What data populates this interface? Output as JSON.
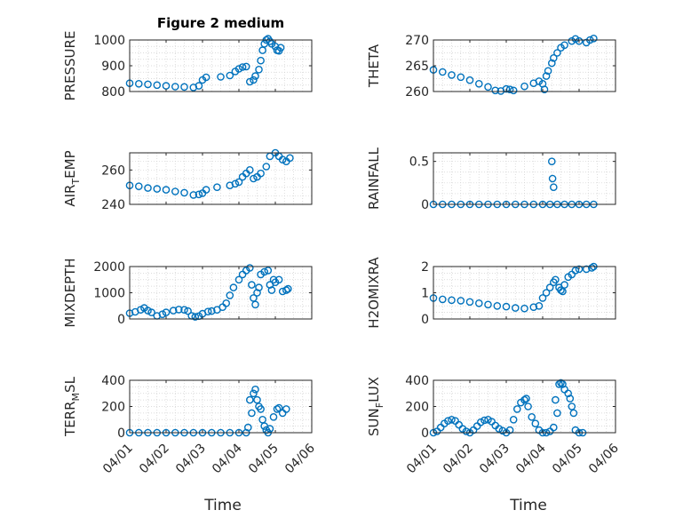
{
  "chart_data": [
    {
      "type": "scatter",
      "title": "Figure 2 medium",
      "ylabel": "PRESSURE",
      "ylim": [
        800,
        1000
      ],
      "yticks": [
        800,
        900,
        1000
      ],
      "xlim": [
        0,
        5
      ],
      "xticks": [
        "04/01",
        "04/02",
        "04/03",
        "04/04",
        "04/05",
        "04/06"
      ],
      "grid": true,
      "marker_color": "#0072BD",
      "points": [
        [
          0,
          832
        ],
        [
          0.25,
          830
        ],
        [
          0.5,
          828
        ],
        [
          0.75,
          825
        ],
        [
          1,
          822
        ],
        [
          1.25,
          819
        ],
        [
          1.5,
          818
        ],
        [
          1.75,
          816
        ],
        [
          1.9,
          822
        ],
        [
          2,
          845
        ],
        [
          2.1,
          855
        ],
        [
          2.5,
          857
        ],
        [
          2.75,
          862
        ],
        [
          2.9,
          878
        ],
        [
          3,
          888
        ],
        [
          3.1,
          895
        ],
        [
          3.2,
          897
        ],
        [
          3.3,
          838
        ],
        [
          3.4,
          845
        ],
        [
          3.45,
          860
        ],
        [
          3.55,
          885
        ],
        [
          3.6,
          920
        ],
        [
          3.65,
          960
        ],
        [
          3.7,
          985
        ],
        [
          3.75,
          1000
        ],
        [
          3.8,
          1005
        ],
        [
          3.85,
          995
        ],
        [
          3.9,
          985
        ],
        [
          4,
          975
        ],
        [
          4.05,
          960
        ],
        [
          4.1,
          958
        ],
        [
          4.15,
          970
        ]
      ]
    },
    {
      "type": "scatter",
      "title": "",
      "ylabel": "THETA",
      "ylim": [
        260,
        270
      ],
      "yticks": [
        260,
        265,
        270
      ],
      "xlim": [
        0,
        5
      ],
      "xticks": [
        "04/01",
        "04/02",
        "04/03",
        "04/04",
        "04/05",
        "04/06"
      ],
      "grid": true,
      "marker_color": "#0072BD",
      "points": [
        [
          0,
          264.2
        ],
        [
          0.25,
          263.8
        ],
        [
          0.5,
          263.2
        ],
        [
          0.75,
          262.8
        ],
        [
          1,
          262.2
        ],
        [
          1.25,
          261.5
        ],
        [
          1.5,
          260.9
        ],
        [
          1.7,
          260.2
        ],
        [
          1.85,
          260.1
        ],
        [
          2,
          260.5
        ],
        [
          2.1,
          260.4
        ],
        [
          2.2,
          260.2
        ],
        [
          2.5,
          261
        ],
        [
          2.75,
          261.6
        ],
        [
          2.9,
          262
        ],
        [
          3,
          261.5
        ],
        [
          3.05,
          260.4
        ],
        [
          3.1,
          263
        ],
        [
          3.15,
          264
        ],
        [
          3.25,
          265.5
        ],
        [
          3.3,
          266.5
        ],
        [
          3.4,
          267.5
        ],
        [
          3.5,
          268.5
        ],
        [
          3.6,
          269
        ],
        [
          3.8,
          269.8
        ],
        [
          3.9,
          270.2
        ],
        [
          4,
          269.8
        ],
        [
          4.2,
          269.5
        ],
        [
          4.3,
          270
        ],
        [
          4.4,
          270.3
        ]
      ]
    },
    {
      "type": "scatter",
      "title": "",
      "ylabel": "AIR_TEMP",
      "ylim": [
        240,
        270
      ],
      "yticks": [
        240,
        260
      ],
      "xlim": [
        0,
        5
      ],
      "xticks": [
        "04/01",
        "04/02",
        "04/03",
        "04/04",
        "04/05",
        "04/06"
      ],
      "grid": true,
      "marker_color": "#0072BD",
      "points": [
        [
          0,
          251
        ],
        [
          0.25,
          250.5
        ],
        [
          0.5,
          249.5
        ],
        [
          0.75,
          249
        ],
        [
          1,
          248.5
        ],
        [
          1.25,
          247.5
        ],
        [
          1.5,
          246.8
        ],
        [
          1.75,
          245.5
        ],
        [
          1.9,
          245.8
        ],
        [
          2,
          246.5
        ],
        [
          2.1,
          248.5
        ],
        [
          2.4,
          250
        ],
        [
          2.75,
          251
        ],
        [
          2.9,
          252
        ],
        [
          3,
          253
        ],
        [
          3.1,
          256
        ],
        [
          3.2,
          258
        ],
        [
          3.3,
          260
        ],
        [
          3.4,
          255
        ],
        [
          3.5,
          256
        ],
        [
          3.6,
          258
        ],
        [
          3.75,
          262
        ],
        [
          3.85,
          268
        ],
        [
          4,
          270
        ],
        [
          4.1,
          268
        ],
        [
          4.2,
          266
        ],
        [
          4.3,
          265
        ],
        [
          4.4,
          267
        ]
      ]
    },
    {
      "type": "scatter",
      "title": "",
      "ylabel": "RAINFALL",
      "ylim": [
        0,
        0.6
      ],
      "yticks": [
        0,
        0.5
      ],
      "xlim": [
        0,
        5
      ],
      "xticks": [
        "04/01",
        "04/02",
        "04/03",
        "04/04",
        "04/05",
        "04/06"
      ],
      "grid": true,
      "marker_color": "#0072BD",
      "points": [
        [
          0,
          0
        ],
        [
          0.25,
          0
        ],
        [
          0.5,
          0
        ],
        [
          0.75,
          0
        ],
        [
          1,
          0
        ],
        [
          1.25,
          0
        ],
        [
          1.5,
          0
        ],
        [
          1.75,
          0
        ],
        [
          2,
          0
        ],
        [
          2.25,
          0
        ],
        [
          2.5,
          0
        ],
        [
          2.75,
          0
        ],
        [
          3,
          0
        ],
        [
          3.2,
          0
        ],
        [
          3.25,
          0.5
        ],
        [
          3.27,
          0.3
        ],
        [
          3.3,
          0.2
        ],
        [
          3.4,
          0
        ],
        [
          3.6,
          0
        ],
        [
          3.8,
          0
        ],
        [
          4,
          0
        ],
        [
          4.2,
          0
        ],
        [
          4.4,
          0
        ]
      ]
    },
    {
      "type": "scatter",
      "title": "",
      "ylabel": "MIXDEPTH",
      "ylim": [
        0,
        2000
      ],
      "yticks": [
        0,
        1000,
        2000
      ],
      "xlim": [
        0,
        5
      ],
      "xticks": [
        "04/01",
        "04/02",
        "04/03",
        "04/04",
        "04/05",
        "04/06"
      ],
      "grid": true,
      "marker_color": "#0072BD",
      "points": [
        [
          0,
          220
        ],
        [
          0.15,
          270
        ],
        [
          0.3,
          350
        ],
        [
          0.4,
          420
        ],
        [
          0.5,
          320
        ],
        [
          0.6,
          250
        ],
        [
          0.75,
          120
        ],
        [
          0.9,
          180
        ],
        [
          1,
          250
        ],
        [
          1.2,
          320
        ],
        [
          1.35,
          360
        ],
        [
          1.5,
          350
        ],
        [
          1.6,
          300
        ],
        [
          1.7,
          120
        ],
        [
          1.8,
          80
        ],
        [
          1.9,
          110
        ],
        [
          2,
          200
        ],
        [
          2.15,
          280
        ],
        [
          2.25,
          300
        ],
        [
          2.4,
          350
        ],
        [
          2.55,
          450
        ],
        [
          2.65,
          600
        ],
        [
          2.75,
          900
        ],
        [
          2.85,
          1200
        ],
        [
          3,
          1500
        ],
        [
          3.1,
          1700
        ],
        [
          3.2,
          1850
        ],
        [
          3.3,
          1950
        ],
        [
          3.35,
          1300
        ],
        [
          3.4,
          800
        ],
        [
          3.45,
          550
        ],
        [
          3.5,
          1000
        ],
        [
          3.55,
          1200
        ],
        [
          3.6,
          1700
        ],
        [
          3.7,
          1800
        ],
        [
          3.8,
          1850
        ],
        [
          3.85,
          1300
        ],
        [
          3.9,
          1100
        ],
        [
          3.95,
          1500
        ],
        [
          4,
          1400
        ],
        [
          4.1,
          1500
        ],
        [
          4.2,
          1050
        ],
        [
          4.3,
          1100
        ],
        [
          4.35,
          1150
        ]
      ]
    },
    {
      "type": "scatter",
      "title": "",
      "ylabel": "H2OMIXRA",
      "ylim": [
        0,
        2
      ],
      "yticks": [
        0,
        1,
        2
      ],
      "xlim": [
        0,
        5
      ],
      "xticks": [
        "04/01",
        "04/02",
        "04/03",
        "04/04",
        "04/05",
        "04/06"
      ],
      "grid": true,
      "marker_color": "#0072BD",
      "points": [
        [
          0,
          0.8
        ],
        [
          0.25,
          0.75
        ],
        [
          0.5,
          0.72
        ],
        [
          0.75,
          0.7
        ],
        [
          1,
          0.65
        ],
        [
          1.25,
          0.6
        ],
        [
          1.5,
          0.55
        ],
        [
          1.75,
          0.5
        ],
        [
          2,
          0.47
        ],
        [
          2.25,
          0.42
        ],
        [
          2.5,
          0.4
        ],
        [
          2.75,
          0.45
        ],
        [
          2.9,
          0.5
        ],
        [
          3,
          0.8
        ],
        [
          3.1,
          1
        ],
        [
          3.2,
          1.2
        ],
        [
          3.3,
          1.4
        ],
        [
          3.35,
          1.5
        ],
        [
          3.45,
          1.2
        ],
        [
          3.5,
          1.1
        ],
        [
          3.55,
          1.05
        ],
        [
          3.6,
          1.3
        ],
        [
          3.7,
          1.6
        ],
        [
          3.8,
          1.7
        ],
        [
          3.9,
          1.85
        ],
        [
          4,
          1.9
        ],
        [
          4.2,
          1.9
        ],
        [
          4.35,
          1.95
        ],
        [
          4.4,
          2
        ]
      ]
    },
    {
      "type": "scatter",
      "title": "",
      "ylabel": "TERR_MSL",
      "ylim": [
        0,
        400
      ],
      "yticks": [
        0,
        200,
        400
      ],
      "xlim": [
        0,
        5
      ],
      "xticks": [
        "04/01",
        "04/02",
        "04/03",
        "04/04",
        "04/05",
        "04/06"
      ],
      "grid": true,
      "marker_color": "#0072BD",
      "points": [
        [
          0,
          0
        ],
        [
          0.25,
          0
        ],
        [
          0.5,
          0
        ],
        [
          0.75,
          0
        ],
        [
          1,
          0
        ],
        [
          1.25,
          0
        ],
        [
          1.5,
          0
        ],
        [
          1.75,
          0
        ],
        [
          2,
          0
        ],
        [
          2.25,
          0
        ],
        [
          2.5,
          0
        ],
        [
          2.75,
          0
        ],
        [
          3,
          0
        ],
        [
          3.2,
          0
        ],
        [
          3.25,
          40
        ],
        [
          3.3,
          250
        ],
        [
          3.35,
          150
        ],
        [
          3.4,
          300
        ],
        [
          3.45,
          330
        ],
        [
          3.5,
          250
        ],
        [
          3.55,
          200
        ],
        [
          3.6,
          180
        ],
        [
          3.65,
          100
        ],
        [
          3.7,
          50
        ],
        [
          3.75,
          20
        ],
        [
          3.8,
          0
        ],
        [
          3.85,
          30
        ],
        [
          3.95,
          120
        ],
        [
          4.05,
          180
        ],
        [
          4.1,
          190
        ],
        [
          4.2,
          150
        ],
        [
          4.3,
          180
        ]
      ]
    },
    {
      "type": "scatter",
      "title": "",
      "ylabel": "SUN_FLUX",
      "ylim": [
        0,
        400
      ],
      "yticks": [
        0,
        200,
        400
      ],
      "xlim": [
        0,
        5
      ],
      "xticks": [
        "04/01",
        "04/02",
        "04/03",
        "04/04",
        "04/05",
        "04/06"
      ],
      "grid": true,
      "marker_color": "#0072BD",
      "points": [
        [
          0,
          0
        ],
        [
          0.1,
          10
        ],
        [
          0.2,
          40
        ],
        [
          0.3,
          70
        ],
        [
          0.4,
          90
        ],
        [
          0.5,
          100
        ],
        [
          0.6,
          90
        ],
        [
          0.7,
          60
        ],
        [
          0.8,
          30
        ],
        [
          0.9,
          10
        ],
        [
          1,
          0
        ],
        [
          1.1,
          20
        ],
        [
          1.2,
          50
        ],
        [
          1.3,
          80
        ],
        [
          1.4,
          95
        ],
        [
          1.5,
          100
        ],
        [
          1.6,
          85
        ],
        [
          1.7,
          55
        ],
        [
          1.8,
          30
        ],
        [
          1.9,
          15
        ],
        [
          2,
          0
        ],
        [
          2.1,
          20
        ],
        [
          2.2,
          100
        ],
        [
          2.3,
          180
        ],
        [
          2.4,
          230
        ],
        [
          2.5,
          250
        ],
        [
          2.55,
          260
        ],
        [
          2.6,
          200
        ],
        [
          2.7,
          120
        ],
        [
          2.8,
          70
        ],
        [
          2.9,
          20
        ],
        [
          3,
          0
        ],
        [
          3.1,
          0
        ],
        [
          3.2,
          10
        ],
        [
          3.3,
          40
        ],
        [
          3.35,
          250
        ],
        [
          3.4,
          150
        ],
        [
          3.45,
          370
        ],
        [
          3.5,
          380
        ],
        [
          3.55,
          370
        ],
        [
          3.6,
          330
        ],
        [
          3.7,
          300
        ],
        [
          3.75,
          260
        ],
        [
          3.8,
          200
        ],
        [
          3.85,
          150
        ],
        [
          3.9,
          20
        ],
        [
          4,
          0
        ],
        [
          4.1,
          0
        ]
      ]
    }
  ],
  "xlabels": [
    "Time",
    "Time"
  ]
}
